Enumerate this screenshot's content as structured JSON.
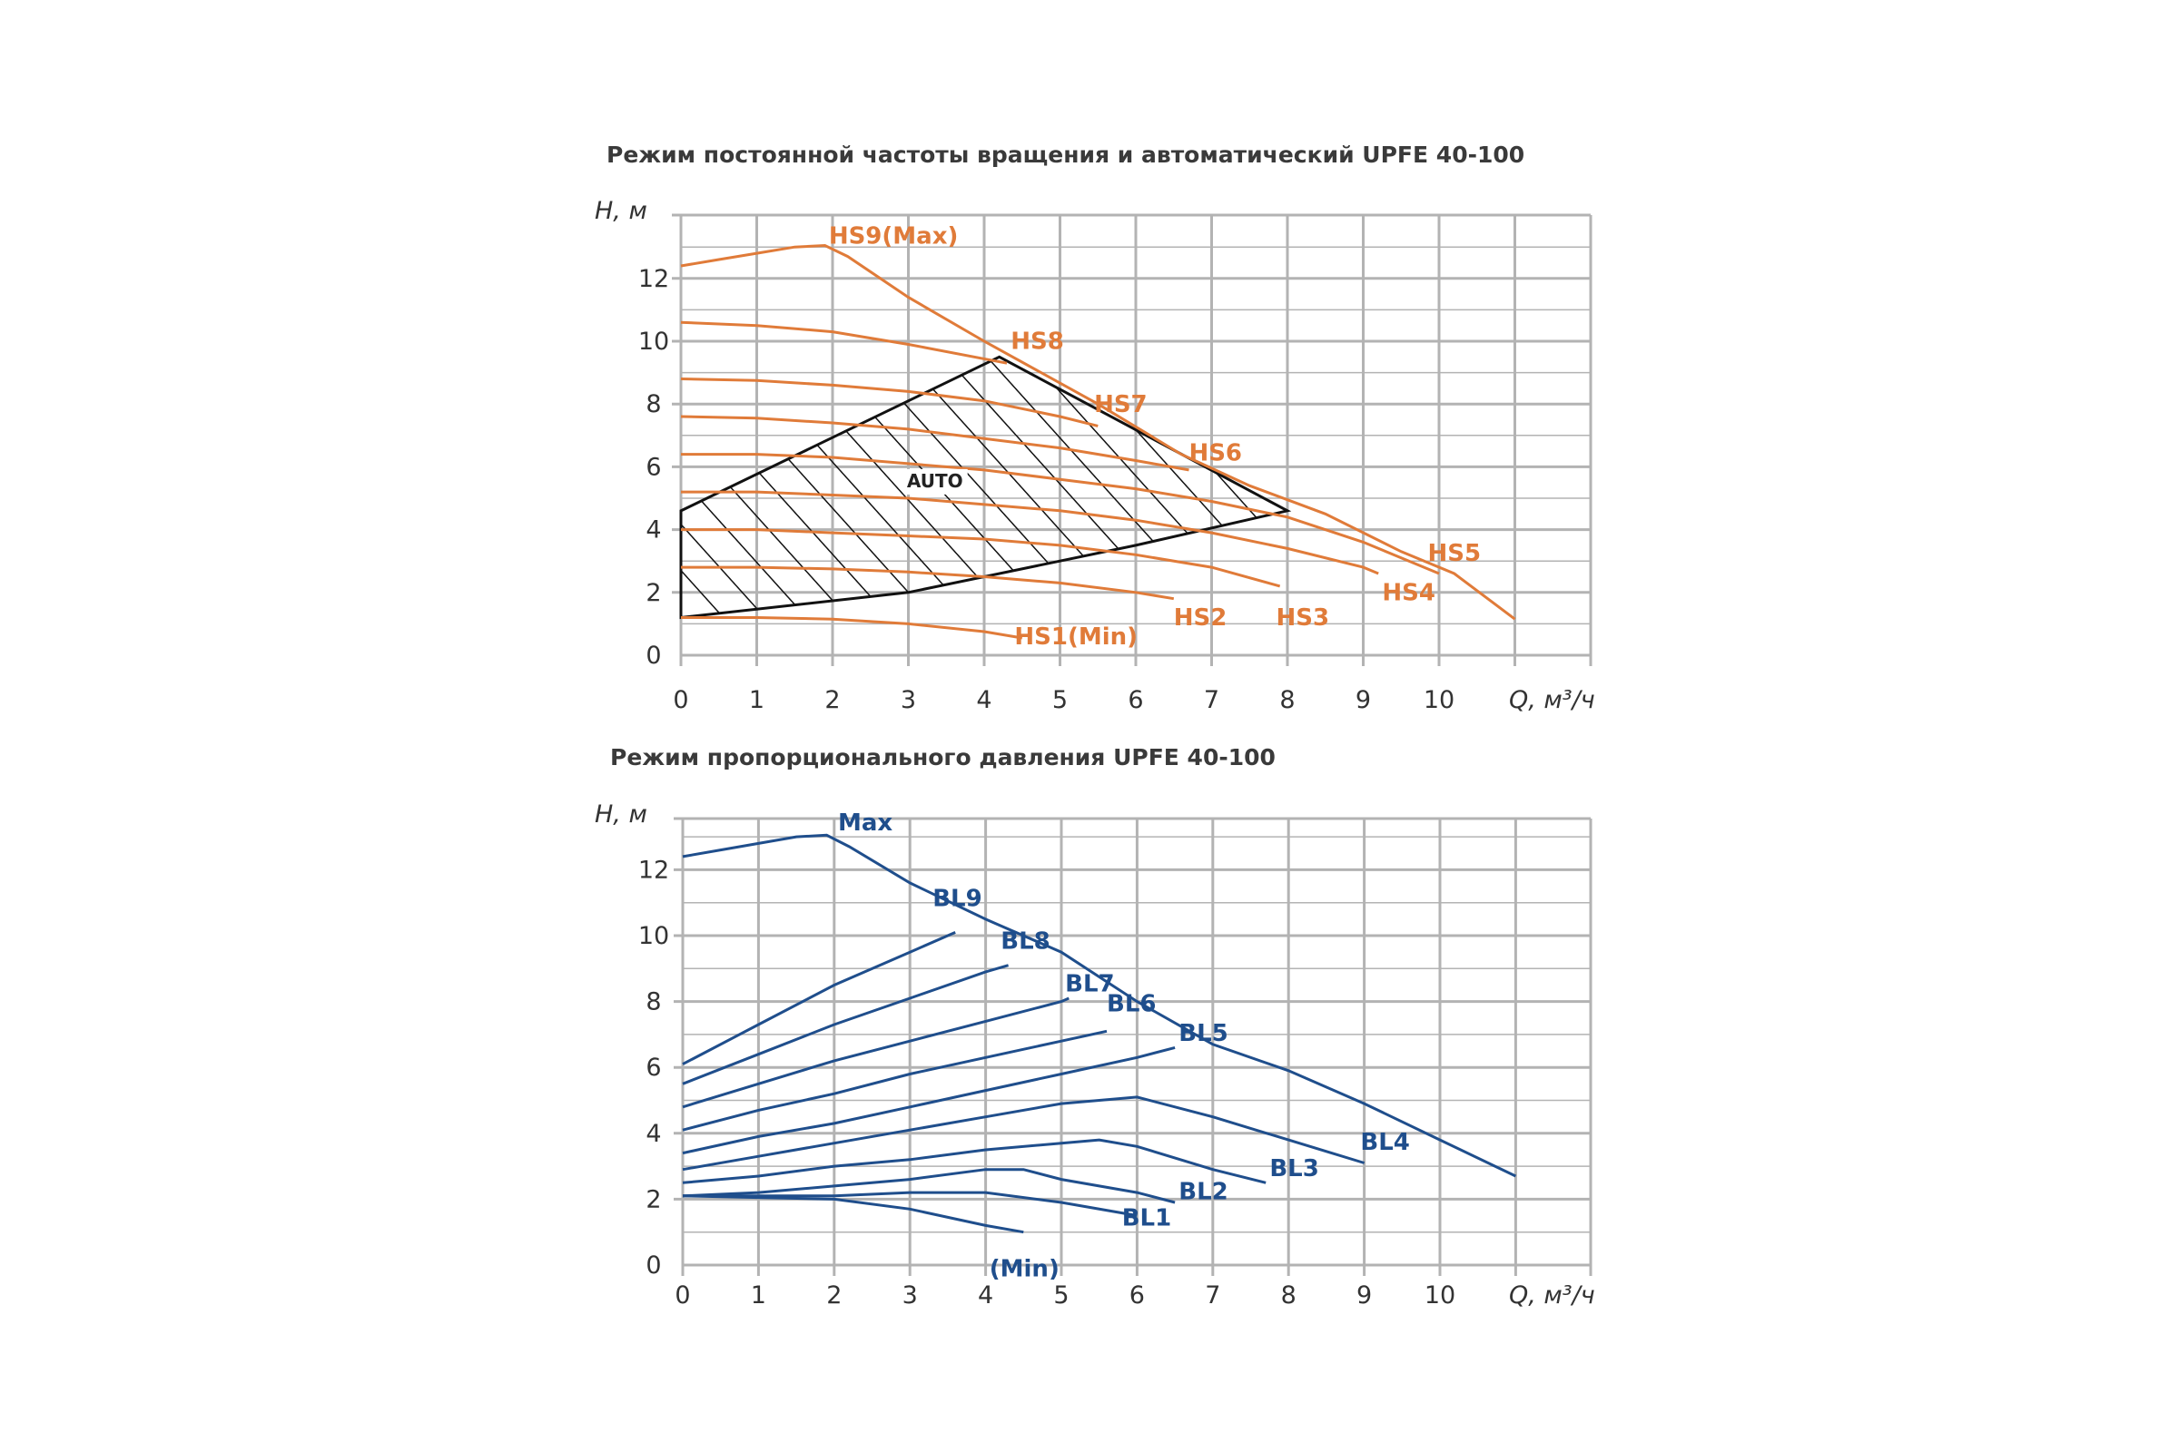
{
  "chart_data": [
    {
      "type": "line",
      "title": "Режим постоянной частоты вращения и автоматический  UPFE 40-100",
      "xlabel": "Q, м³/ч",
      "ylabel": "H, м",
      "xlim": [
        0,
        12
      ],
      "ylim": [
        0,
        14
      ],
      "xticks": [
        "0",
        "1",
        "2",
        "3",
        "4",
        "5",
        "6",
        "7",
        "8",
        "9",
        "10"
      ],
      "yticks": [
        "0",
        "2",
        "4",
        "6",
        "8",
        "10",
        "12"
      ],
      "grid": true,
      "series_color": "#E07B39",
      "series": [
        {
          "name": "HS9(Max)",
          "points": [
            [
              0,
              12.4
            ],
            [
              0.5,
              12.6
            ],
            [
              1,
              12.8
            ],
            [
              1.5,
              13.0
            ],
            [
              1.9,
              13.05
            ],
            [
              2.2,
              12.7
            ],
            [
              3,
              11.4
            ],
            [
              4,
              10.0
            ],
            [
              4.3,
              9.6
            ],
            [
              5.5,
              8.0
            ],
            [
              6.6,
              6.4
            ],
            [
              7.5,
              5.4
            ],
            [
              8.5,
              4.5
            ],
            [
              9.5,
              3.3
            ],
            [
              10.2,
              2.6
            ],
            [
              11,
              1.15
            ]
          ]
        },
        {
          "name": "HS8",
          "points": [
            [
              0,
              10.6
            ],
            [
              1,
              10.5
            ],
            [
              2,
              10.3
            ],
            [
              3,
              9.9
            ],
            [
              4.3,
              9.3
            ]
          ]
        },
        {
          "name": "HS7",
          "points": [
            [
              0,
              8.8
            ],
            [
              1,
              8.75
            ],
            [
              2,
              8.6
            ],
            [
              3,
              8.4
            ],
            [
              4,
              8.1
            ],
            [
              5,
              7.6
            ],
            [
              5.5,
              7.3
            ]
          ]
        },
        {
          "name": "HS6",
          "points": [
            [
              0,
              7.6
            ],
            [
              1,
              7.55
            ],
            [
              2,
              7.4
            ],
            [
              3,
              7.2
            ],
            [
              4,
              6.9
            ],
            [
              5,
              6.6
            ],
            [
              6,
              6.2
            ],
            [
              6.7,
              5.9
            ]
          ]
        },
        {
          "name": "HS5",
          "points": [
            [
              0,
              6.4
            ],
            [
              1,
              6.4
            ],
            [
              2,
              6.3
            ],
            [
              3,
              6.1
            ],
            [
              4,
              5.9
            ],
            [
              5,
              5.6
            ],
            [
              6,
              5.3
            ],
            [
              7,
              4.9
            ],
            [
              8,
              4.4
            ],
            [
              9,
              3.6
            ],
            [
              10,
              2.6
            ]
          ]
        },
        {
          "name": "HS4",
          "points": [
            [
              0,
              5.2
            ],
            [
              1,
              5.2
            ],
            [
              2,
              5.1
            ],
            [
              3,
              5.0
            ],
            [
              4,
              4.8
            ],
            [
              5,
              4.6
            ],
            [
              6,
              4.3
            ],
            [
              7,
              3.9
            ],
            [
              8,
              3.4
            ],
            [
              9,
              2.8
            ],
            [
              9.2,
              2.6
            ]
          ]
        },
        {
          "name": "HS3",
          "points": [
            [
              0,
              4.0
            ],
            [
              1,
              4.0
            ],
            [
              2,
              3.9
            ],
            [
              3,
              3.8
            ],
            [
              4,
              3.7
            ],
            [
              5,
              3.5
            ],
            [
              6,
              3.2
            ],
            [
              7,
              2.8
            ],
            [
              7.9,
              2.2
            ]
          ]
        },
        {
          "name": "HS2",
          "points": [
            [
              0,
              2.8
            ],
            [
              1,
              2.8
            ],
            [
              2,
              2.75
            ],
            [
              3,
              2.65
            ],
            [
              4,
              2.5
            ],
            [
              5,
              2.3
            ],
            [
              6,
              2.0
            ],
            [
              6.5,
              1.8
            ]
          ]
        },
        {
          "name": "HS1(Min)",
          "points": [
            [
              0,
              1.2
            ],
            [
              1,
              1.2
            ],
            [
              2,
              1.15
            ],
            [
              3,
              1.0
            ],
            [
              4,
              0.75
            ],
            [
              4.5,
              0.55
            ]
          ]
        }
      ],
      "auto_zone": {
        "label": "AUTO",
        "polygon": [
          [
            0,
            1.2
          ],
          [
            3,
            2.0
          ],
          [
            5,
            3.0
          ],
          [
            6,
            3.5
          ],
          [
            8,
            4.6
          ],
          [
            4.2,
            9.5
          ],
          [
            0,
            4.6
          ]
        ]
      }
    },
    {
      "type": "line",
      "title": "Режим пропорционального давления UPFE 40-100",
      "xlabel": "Q, м³/ч",
      "ylabel": "H, м",
      "xlim": [
        0,
        12
      ],
      "ylim": [
        0,
        14
      ],
      "xticks": [
        "0",
        "1",
        "2",
        "3",
        "4",
        "5",
        "6",
        "7",
        "8",
        "9",
        "10"
      ],
      "yticks": [
        "0",
        "2",
        "4",
        "6",
        "8",
        "10",
        "12"
      ],
      "grid": true,
      "series_color": "#1F4E8C",
      "series": [
        {
          "name": "Max",
          "points": [
            [
              0,
              12.4
            ],
            [
              0.5,
              12.6
            ],
            [
              1,
              12.8
            ],
            [
              1.5,
              13.0
            ],
            [
              1.9,
              13.05
            ],
            [
              2.2,
              12.7
            ],
            [
              3,
              11.6
            ],
            [
              4,
              10.5
            ],
            [
              5,
              9.5
            ],
            [
              6,
              8.0
            ],
            [
              7,
              6.7
            ],
            [
              8,
              5.9
            ],
            [
              9,
              4.9
            ],
            [
              10,
              3.8
            ],
            [
              11,
              2.7
            ]
          ]
        },
        {
          "name": "BL9",
          "points": [
            [
              0,
              6.1
            ],
            [
              1,
              7.3
            ],
            [
              2,
              8.5
            ],
            [
              3,
              9.5
            ],
            [
              3.6,
              10.1
            ]
          ]
        },
        {
          "name": "BL8",
          "points": [
            [
              0,
              5.5
            ],
            [
              1,
              6.4
            ],
            [
              2,
              7.3
            ],
            [
              3,
              8.1
            ],
            [
              4,
              8.9
            ],
            [
              4.3,
              9.1
            ]
          ]
        },
        {
          "name": "BL7",
          "points": [
            [
              0,
              4.8
            ],
            [
              1,
              5.5
            ],
            [
              2,
              6.2
            ],
            [
              3,
              6.8
            ],
            [
              4,
              7.4
            ],
            [
              5,
              8.0
            ],
            [
              5.1,
              8.1
            ]
          ]
        },
        {
          "name": "BL6",
          "points": [
            [
              0,
              4.1
            ],
            [
              1,
              4.7
            ],
            [
              2,
              5.2
            ],
            [
              3,
              5.8
            ],
            [
              4,
              6.3
            ],
            [
              5,
              6.8
            ],
            [
              5.6,
              7.1
            ]
          ]
        },
        {
          "name": "BL5",
          "points": [
            [
              0,
              3.4
            ],
            [
              1,
              3.9
            ],
            [
              2,
              4.3
            ],
            [
              3,
              4.8
            ],
            [
              4,
              5.3
            ],
            [
              5,
              5.8
            ],
            [
              6,
              6.3
            ],
            [
              6.5,
              6.6
            ]
          ]
        },
        {
          "name": "BL4",
          "points": [
            [
              0,
              2.9
            ],
            [
              1,
              3.3
            ],
            [
              2,
              3.7
            ],
            [
              3,
              4.1
            ],
            [
              4,
              4.5
            ],
            [
              5,
              4.9
            ],
            [
              6,
              5.1
            ],
            [
              7,
              4.5
            ],
            [
              8,
              3.8
            ],
            [
              9,
              3.1
            ]
          ]
        },
        {
          "name": "BL3",
          "points": [
            [
              0,
              2.5
            ],
            [
              1,
              2.7
            ],
            [
              2,
              3.0
            ],
            [
              3,
              3.2
            ],
            [
              4,
              3.5
            ],
            [
              5,
              3.7
            ],
            [
              5.5,
              3.8
            ],
            [
              6,
              3.6
            ],
            [
              7,
              2.9
            ],
            [
              7.7,
              2.5
            ]
          ]
        },
        {
          "name": "BL2",
          "points": [
            [
              0,
              2.1
            ],
            [
              1,
              2.2
            ],
            [
              2,
              2.4
            ],
            [
              3,
              2.6
            ],
            [
              4,
              2.9
            ],
            [
              4.5,
              2.9
            ],
            [
              5,
              2.6
            ],
            [
              6,
              2.2
            ],
            [
              6.5,
              1.9
            ]
          ]
        },
        {
          "name": "BL1",
          "points": [
            [
              0,
              2.1
            ],
            [
              1,
              2.1
            ],
            [
              2,
              2.1
            ],
            [
              3,
              2.2
            ],
            [
              4,
              2.2
            ],
            [
              5,
              1.9
            ],
            [
              6,
              1.5
            ]
          ]
        },
        {
          "name": "(Min)",
          "points": [
            [
              0,
              2.1
            ],
            [
              1,
              2.05
            ],
            [
              2,
              2.0
            ],
            [
              3,
              1.7
            ],
            [
              4,
              1.2
            ],
            [
              4.5,
              1.0
            ]
          ]
        }
      ]
    }
  ]
}
